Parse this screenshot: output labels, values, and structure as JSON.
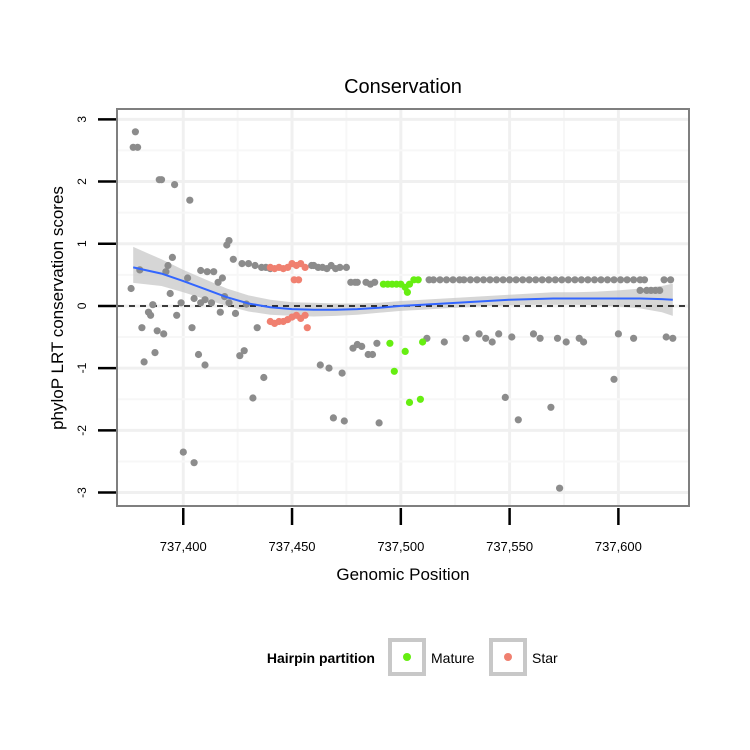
{
  "chart_data": {
    "type": "scatter",
    "title": "Conservation",
    "xlabel": "Genomic Position",
    "ylabel": "phyloP LRT conservation scores",
    "xlim": [
      737370,
      737632
    ],
    "ylim": [
      -3.2,
      3.15
    ],
    "x_ticks": [
      737400,
      737450,
      737500,
      737550,
      737600
    ],
    "x_tick_labels": [
      "737,400",
      "737,450",
      "737,500",
      "737,550",
      "737,600"
    ],
    "y_ticks": [
      3,
      2,
      1,
      0,
      -1,
      -2,
      -3
    ],
    "y_tick_labels": [
      "3",
      "2",
      "1",
      "0",
      "-1",
      "-2",
      "-3"
    ],
    "grid": true,
    "reference_line": {
      "y": 0,
      "style": "dashed"
    },
    "legend": {
      "title": "Hairpin partition",
      "position": "bottom",
      "entries": [
        {
          "label": "Mature",
          "color": "#66ee11"
        },
        {
          "label": "Star",
          "color": "#f08070"
        }
      ]
    },
    "colors": {
      "other": "#8c8c8c",
      "Mature": "#66ee11",
      "Star": "#f08070",
      "smooth": "#3366ff",
      "ribbon": "#c8c8c8"
    },
    "series": [
      {
        "name": "Other",
        "points": [
          [
            737377,
            2.55
          ],
          [
            737378,
            2.8
          ],
          [
            737379,
            2.55
          ],
          [
            737376,
            0.28
          ],
          [
            737380,
            0.58
          ],
          [
            737381,
            -0.35
          ],
          [
            737382,
            -0.9
          ],
          [
            737384,
            -0.1
          ],
          [
            737385,
            -0.15
          ],
          [
            737386,
            0.02
          ],
          [
            737387,
            -0.75
          ],
          [
            737388,
            -0.4
          ],
          [
            737389,
            2.03
          ],
          [
            737390,
            2.03
          ],
          [
            737391,
            -0.45
          ],
          [
            737392,
            0.55
          ],
          [
            737393,
            0.65
          ],
          [
            737394,
            0.2
          ],
          [
            737395,
            0.78
          ],
          [
            737396,
            1.95
          ],
          [
            737397,
            -0.15
          ],
          [
            737399,
            0.05
          ],
          [
            737400,
            -2.35
          ],
          [
            737402,
            0.45
          ],
          [
            737403,
            1.7
          ],
          [
            737404,
            -0.35
          ],
          [
            737405,
            0.12
          ],
          [
            737405,
            -2.52
          ],
          [
            737407,
            -0.78
          ],
          [
            737408,
            0.57
          ],
          [
            737408,
            0.05
          ],
          [
            737410,
            -0.95
          ],
          [
            737410,
            0.1
          ],
          [
            737411,
            0.55
          ],
          [
            737413,
            0.05
          ],
          [
            737414,
            0.55
          ],
          [
            737416,
            0.38
          ],
          [
            737417,
            -0.1
          ],
          [
            737418,
            0.45
          ],
          [
            737419,
            0.15
          ],
          [
            737420,
            0.98
          ],
          [
            737421,
            1.05
          ],
          [
            737421,
            0.05
          ],
          [
            737423,
            0.75
          ],
          [
            737424,
            -0.12
          ],
          [
            737426,
            -0.8
          ],
          [
            737427,
            0.68
          ],
          [
            737428,
            -0.72
          ],
          [
            737429,
            0.03
          ],
          [
            737430,
            0.68
          ],
          [
            737432,
            -1.48
          ],
          [
            737433,
            0.65
          ],
          [
            737434,
            -0.35
          ],
          [
            737436,
            0.62
          ],
          [
            737437,
            -1.15
          ],
          [
            737438,
            0.62
          ],
          [
            737440,
            0.6
          ],
          [
            737459,
            0.65
          ],
          [
            737460,
            0.65
          ],
          [
            737462,
            0.62
          ],
          [
            737464,
            0.62
          ],
          [
            737463,
            -0.95
          ],
          [
            737466,
            0.6
          ],
          [
            737467,
            -1.0
          ],
          [
            737468,
            0.65
          ],
          [
            737469,
            -1.8
          ],
          [
            737470,
            0.6
          ],
          [
            737472,
            0.62
          ],
          [
            737473,
            -1.08
          ],
          [
            737474,
            -1.85
          ],
          [
            737475,
            0.62
          ],
          [
            737477,
            0.38
          ],
          [
            737478,
            -0.68
          ],
          [
            737479,
            0.38
          ],
          [
            737480,
            0.38
          ],
          [
            737480,
            -0.62
          ],
          [
            737482,
            -0.65
          ],
          [
            737484,
            0.38
          ],
          [
            737485,
            -0.78
          ],
          [
            737486,
            0.35
          ],
          [
            737487,
            -0.78
          ],
          [
            737488,
            0.38
          ],
          [
            737489,
            -0.6
          ],
          [
            737490,
            -1.88
          ],
          [
            737512,
            -0.52
          ],
          [
            737513,
            0.42
          ],
          [
            737515,
            0.42
          ],
          [
            737518,
            0.42
          ],
          [
            737520,
            -0.58
          ],
          [
            737521,
            0.42
          ],
          [
            737524,
            0.42
          ],
          [
            737527,
            0.42
          ],
          [
            737529,
            0.42
          ],
          [
            737530,
            -0.52
          ],
          [
            737532,
            0.42
          ],
          [
            737535,
            0.42
          ],
          [
            737536,
            -0.45
          ],
          [
            737538,
            0.42
          ],
          [
            737539,
            -0.52
          ],
          [
            737541,
            0.42
          ],
          [
            737542,
            -0.58
          ],
          [
            737544,
            0.42
          ],
          [
            737545,
            -0.45
          ],
          [
            737547,
            0.42
          ],
          [
            737548,
            -1.47
          ],
          [
            737550,
            0.42
          ],
          [
            737551,
            -0.5
          ],
          [
            737553,
            0.42
          ],
          [
            737554,
            -1.83
          ],
          [
            737556,
            0.42
          ],
          [
            737559,
            0.42
          ],
          [
            737561,
            -0.45
          ],
          [
            737562,
            0.42
          ],
          [
            737564,
            -0.52
          ],
          [
            737565,
            0.42
          ],
          [
            737568,
            0.42
          ],
          [
            737569,
            -1.63
          ],
          [
            737571,
            0.42
          ],
          [
            737572,
            -0.52
          ],
          [
            737573,
            -2.93
          ],
          [
            737574,
            0.42
          ],
          [
            737576,
            -0.58
          ],
          [
            737577,
            0.42
          ],
          [
            737580,
            0.42
          ],
          [
            737582,
            -0.52
          ],
          [
            737583,
            0.42
          ],
          [
            737584,
            -0.58
          ],
          [
            737586,
            0.42
          ],
          [
            737589,
            0.42
          ],
          [
            737592,
            0.42
          ],
          [
            737595,
            0.42
          ],
          [
            737598,
            -1.18
          ],
          [
            737598,
            0.42
          ],
          [
            737600,
            -0.45
          ],
          [
            737601,
            0.42
          ],
          [
            737604,
            0.42
          ],
          [
            737607,
            0.42
          ],
          [
            737607,
            -0.52
          ],
          [
            737610,
            0.42
          ],
          [
            737612,
            0.42
          ],
          [
            737610,
            0.25
          ],
          [
            737613,
            0.25
          ],
          [
            737615,
            0.25
          ],
          [
            737617,
            0.25
          ],
          [
            737619,
            0.25
          ],
          [
            737621,
            0.42
          ],
          [
            737622,
            -0.5
          ],
          [
            737624,
            0.42
          ],
          [
            737625,
            -0.52
          ]
        ]
      },
      {
        "name": "Mature",
        "points": [
          [
            737492,
            0.35
          ],
          [
            737494,
            0.35
          ],
          [
            737496,
            0.35
          ],
          [
            737498,
            0.35
          ],
          [
            737500,
            0.35
          ],
          [
            737502,
            0.3
          ],
          [
            737503,
            0.22
          ],
          [
            737504,
            0.35
          ],
          [
            737506,
            0.42
          ],
          [
            737508,
            0.42
          ],
          [
            737495,
            -0.6
          ],
          [
            737497,
            -1.05
          ],
          [
            737502,
            -0.73
          ],
          [
            737504,
            -1.55
          ],
          [
            737509,
            -1.5
          ],
          [
            737510,
            -0.58
          ]
        ]
      },
      {
        "name": "Star",
        "points": [
          [
            737440,
            0.62
          ],
          [
            737442,
            0.6
          ],
          [
            737444,
            0.62
          ],
          [
            737446,
            0.6
          ],
          [
            737448,
            0.62
          ],
          [
            737450,
            0.68
          ],
          [
            737452,
            0.65
          ],
          [
            737454,
            0.68
          ],
          [
            737456,
            0.62
          ],
          [
            737451,
            0.42
          ],
          [
            737453,
            0.42
          ],
          [
            737440,
            -0.25
          ],
          [
            737442,
            -0.28
          ],
          [
            737444,
            -0.25
          ],
          [
            737446,
            -0.25
          ],
          [
            737448,
            -0.22
          ],
          [
            737450,
            -0.18
          ],
          [
            737452,
            -0.15
          ],
          [
            737454,
            -0.2
          ],
          [
            737456,
            -0.15
          ],
          [
            737457,
            -0.35
          ]
        ]
      }
    ],
    "smooth_line": {
      "x": [
        737377,
        737390,
        737400,
        737410,
        737420,
        737430,
        737440,
        737450,
        737460,
        737470,
        737480,
        737490,
        737500,
        737510,
        737520,
        737530,
        737540,
        737550,
        737560,
        737570,
        737580,
        737590,
        737600,
        737610,
        737620,
        737625
      ],
      "y": [
        0.62,
        0.52,
        0.4,
        0.27,
        0.14,
        0.04,
        -0.02,
        -0.05,
        -0.06,
        -0.06,
        -0.05,
        -0.03,
        0.0,
        0.02,
        0.04,
        0.06,
        0.08,
        0.1,
        0.11,
        0.12,
        0.12,
        0.12,
        0.12,
        0.12,
        0.11,
        0.1
      ],
      "lower": [
        0.37,
        0.32,
        0.22,
        0.11,
        0.0,
        -0.09,
        -0.14,
        -0.16,
        -0.17,
        -0.16,
        -0.14,
        -0.11,
        -0.08,
        -0.06,
        -0.04,
        -0.02,
        0.0,
        0.01,
        0.02,
        0.02,
        0.02,
        0.01,
        -0.01,
        -0.04,
        -0.1,
        -0.16
      ],
      "upper": [
        0.95,
        0.75,
        0.58,
        0.43,
        0.28,
        0.17,
        0.1,
        0.06,
        0.05,
        0.04,
        0.04,
        0.05,
        0.08,
        0.1,
        0.12,
        0.14,
        0.16,
        0.18,
        0.2,
        0.22,
        0.22,
        0.23,
        0.25,
        0.28,
        0.32,
        0.36
      ]
    }
  }
}
